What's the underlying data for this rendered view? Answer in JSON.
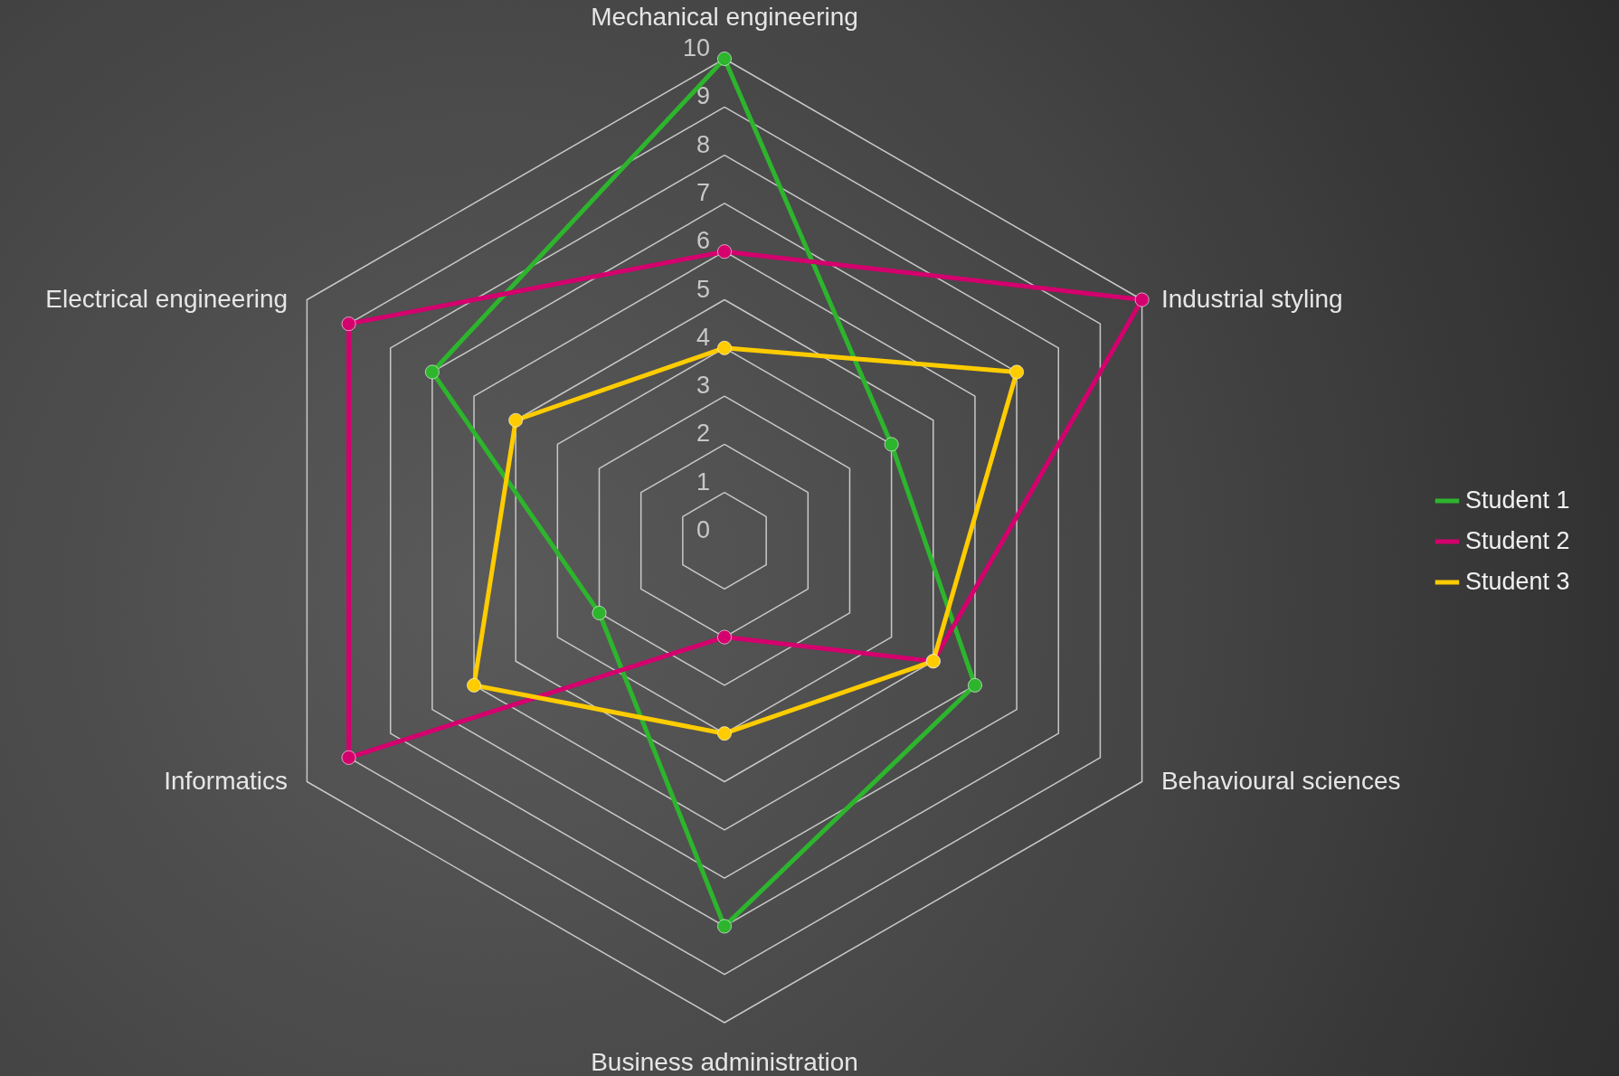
{
  "chart_data": {
    "type": "radar",
    "categories": [
      "Mechanical engineering",
      "Industrial styling",
      "Behavioural sciences",
      "Business administration",
      "Informatics",
      "Electrical engineering"
    ],
    "series": [
      {
        "name": "Student 1",
        "color": "#2db52d",
        "values": [
          10,
          4,
          6,
          8,
          3,
          7
        ]
      },
      {
        "name": "Student 2",
        "color": "#d4006e",
        "values": [
          6,
          10,
          5,
          2,
          9,
          9
        ]
      },
      {
        "name": "Student 3",
        "color": "#ffcc00",
        "values": [
          4,
          7,
          5,
          4,
          6,
          5
        ]
      }
    ],
    "ylim": [
      0,
      10
    ],
    "yticks": [
      0,
      1,
      2,
      3,
      4,
      5,
      6,
      7,
      8,
      9,
      10
    ],
    "grid": true,
    "legend": "right",
    "marker": "circle",
    "line_style": "solid"
  }
}
